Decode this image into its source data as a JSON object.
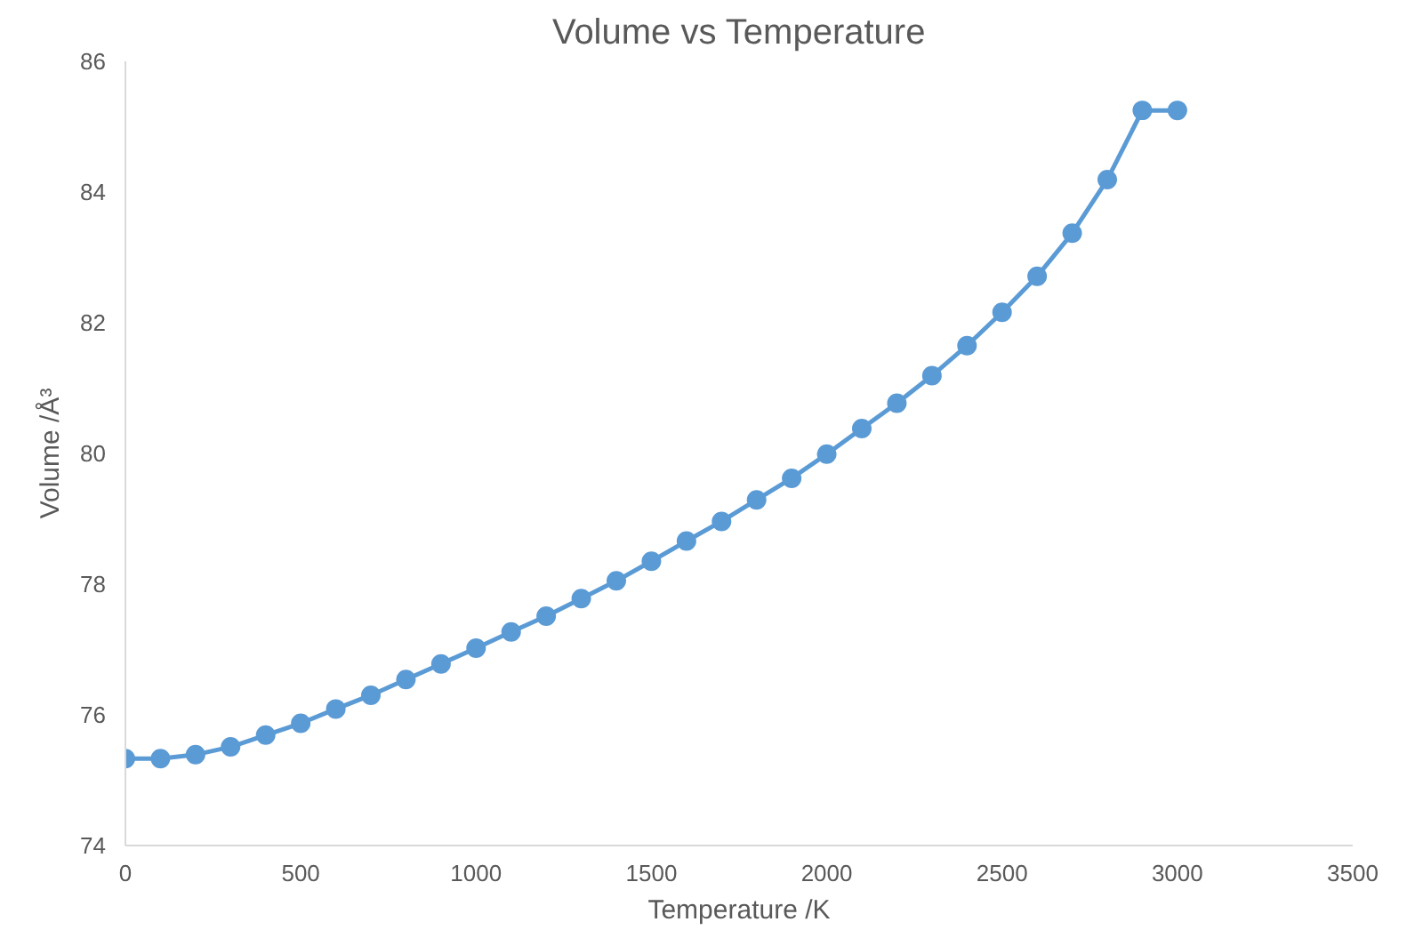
{
  "chart_data": {
    "type": "line",
    "title": "Volume vs Temperature",
    "xlabel": "Temperature /K",
    "ylabel": "Volume /Å³",
    "x": [
      0,
      100,
      200,
      300,
      400,
      500,
      600,
      700,
      800,
      900,
      1000,
      1100,
      1200,
      1300,
      1400,
      1500,
      1600,
      1700,
      1800,
      1900,
      2000,
      2100,
      2200,
      2300,
      2400,
      2500,
      2600,
      2700,
      2800,
      2900,
      3000
    ],
    "series": [
      {
        "color": "#5b9bd5",
        "values": [
          75.33,
          75.33,
          75.39,
          75.51,
          75.69,
          75.87,
          76.09,
          76.3,
          76.54,
          76.78,
          77.02,
          77.27,
          77.51,
          77.78,
          78.05,
          78.35,
          78.66,
          78.96,
          79.29,
          79.62,
          79.99,
          80.38,
          80.77,
          81.19,
          81.65,
          82.16,
          82.71,
          83.37,
          84.19,
          85.25,
          85.25
        ]
      }
    ],
    "xlim": [
      0,
      3500
    ],
    "xticks": [
      0,
      500,
      1000,
      1500,
      2000,
      2500,
      3000,
      3500
    ],
    "ylim": [
      74,
      86
    ],
    "yticks": [
      74,
      76,
      78,
      80,
      82,
      84,
      86
    ],
    "grid": false,
    "marker": "circle",
    "line_style": "solid"
  }
}
